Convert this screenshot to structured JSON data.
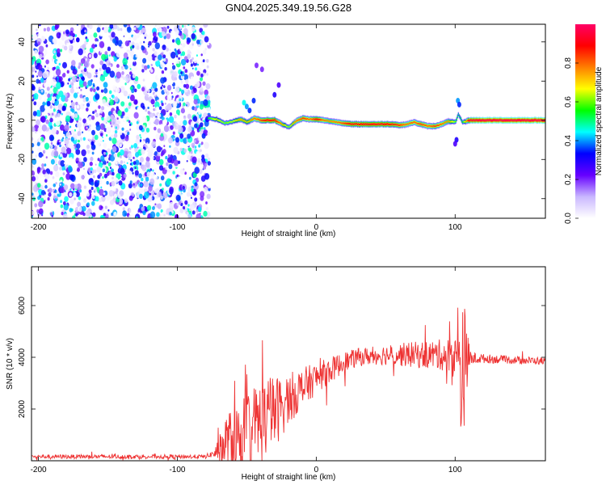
{
  "title": "GN04.2025.349.19.56.G28",
  "chart_data": [
    {
      "type": "heatmap",
      "title": "GN04.2025.349.19.56.G28",
      "xlabel": "Height of straight line (km)",
      "ylabel": "Frequency (Hz)",
      "xlim": [
        -205,
        165
      ],
      "ylim": [
        -50,
        49
      ],
      "xticks": [
        -200,
        -100,
        0,
        100
      ],
      "xtick_labels": [
        "-200",
        "-100",
        "0",
        "100"
      ],
      "yticks": [
        -40,
        -20,
        0,
        20,
        40
      ],
      "ytick_labels": [
        "-40",
        "-20",
        "0",
        "20",
        "40"
      ],
      "noise_region_x": [
        -205,
        -77
      ],
      "signal_start_x": -78,
      "signal_track": [
        [
          -78,
          1.0,
          0.55
        ],
        [
          -72,
          0.5,
          0.7
        ],
        [
          -66,
          -1.5,
          0.6
        ],
        [
          -60,
          -0.5,
          0.65
        ],
        [
          -55,
          0.5,
          0.75
        ],
        [
          -50,
          -1.0,
          0.7
        ],
        [
          -45,
          1.0,
          0.8
        ],
        [
          -40,
          0.0,
          0.85
        ],
        [
          -35,
          0.0,
          0.9
        ],
        [
          -30,
          0.0,
          0.9
        ],
        [
          -25,
          -2.0,
          0.75
        ],
        [
          -20,
          -3.5,
          0.6
        ],
        [
          -15,
          -0.5,
          0.8
        ],
        [
          -10,
          1.0,
          0.85
        ],
        [
          -5,
          0.5,
          0.8
        ],
        [
          0,
          0.5,
          0.9
        ],
        [
          5,
          0.0,
          0.8
        ],
        [
          10,
          -0.5,
          0.75
        ],
        [
          15,
          -1.0,
          0.8
        ],
        [
          20,
          -1.5,
          0.85
        ],
        [
          25,
          -2.0,
          0.9
        ],
        [
          30,
          -2.0,
          0.88
        ],
        [
          35,
          -2.0,
          0.92
        ],
        [
          40,
          -2.0,
          0.9
        ],
        [
          45,
          -2.0,
          0.92
        ],
        [
          50,
          -2.0,
          0.9
        ],
        [
          55,
          -2.0,
          0.88
        ],
        [
          60,
          -2.5,
          0.85
        ],
        [
          65,
          -2.0,
          0.8
        ],
        [
          70,
          -1.0,
          0.8
        ],
        [
          75,
          -2.0,
          0.85
        ],
        [
          80,
          -3.0,
          0.8
        ],
        [
          85,
          -3.0,
          0.85
        ],
        [
          90,
          -2.0,
          0.8
        ],
        [
          95,
          -0.5,
          0.75
        ],
        [
          100,
          -1.0,
          0.6
        ],
        [
          102,
          3.0,
          0.5
        ],
        [
          105,
          -1.0,
          0.55
        ],
        [
          110,
          0.0,
          0.95
        ],
        [
          120,
          0.0,
          0.98
        ],
        [
          130,
          0.0,
          0.98
        ],
        [
          140,
          0.0,
          0.98
        ],
        [
          150,
          0.0,
          0.98
        ],
        [
          160,
          0.0,
          0.98
        ],
        [
          165,
          0.0,
          0.98
        ]
      ],
      "scattered_features": [
        [
          -50,
          7,
          0.4
        ],
        [
          -52,
          9,
          0.45
        ],
        [
          -48,
          5,
          0.35
        ],
        [
          -45,
          10,
          0.35
        ],
        [
          -30,
          13,
          0.3
        ],
        [
          -27,
          18,
          0.25
        ],
        [
          -43,
          28,
          0.2
        ],
        [
          -39,
          26,
          0.2
        ],
        [
          -100,
          -10,
          0.35
        ],
        [
          -97,
          -8,
          0.3
        ],
        [
          -81,
          -8,
          0.35
        ],
        [
          102,
          10,
          0.4
        ],
        [
          103,
          8,
          0.35
        ],
        [
          101,
          -10,
          0.3
        ],
        [
          100,
          -12,
          0.25
        ]
      ],
      "colorbar": {
        "label": "Normalized spectral amplitude",
        "range": [
          0.0,
          1.0
        ],
        "ticks": [
          0.0,
          0.2,
          0.4,
          0.6,
          0.8
        ],
        "tick_labels": [
          "0.0",
          "0.2",
          "0.4",
          "0.6",
          "0.8"
        ],
        "colors": [
          "#ffffff",
          "#c9b7ff",
          "#6600ff",
          "#0000ff",
          "#00ffff",
          "#00ff00",
          "#ffff00",
          "#ff7f00",
          "#ff0000",
          "#ff0066"
        ]
      }
    },
    {
      "type": "line",
      "xlabel": "Height of straight line (km)",
      "ylabel": "SNR (10 * v/v)",
      "xlim": [
        -205,
        165
      ],
      "ylim": [
        0,
        7500
      ],
      "xticks": [
        -200,
        -100,
        0,
        100
      ],
      "xtick_labels": [
        "-200",
        "-100",
        "0",
        "100"
      ],
      "yticks": [
        2000,
        4000,
        6000
      ],
      "ytick_labels": [
        "2000",
        "4000",
        "6000"
      ],
      "color": "#ee3333",
      "profile": [
        [
          -205,
          160,
          80
        ],
        [
          -80,
          160,
          80
        ],
        [
          -75,
          250,
          120
        ],
        [
          -70,
          400,
          500
        ],
        [
          -65,
          700,
          1100
        ],
        [
          -60,
          850,
          1200
        ],
        [
          -55,
          950,
          1300
        ],
        [
          -50,
          1200,
          1500
        ],
        [
          -45,
          1350,
          1600
        ],
        [
          -40,
          1500,
          1700
        ],
        [
          -35,
          1700,
          1500
        ],
        [
          -30,
          1900,
          1400
        ],
        [
          -25,
          2100,
          1200
        ],
        [
          -20,
          2400,
          1000
        ],
        [
          -15,
          2600,
          900
        ],
        [
          -10,
          2800,
          800
        ],
        [
          -5,
          3000,
          700
        ],
        [
          0,
          3200,
          600
        ],
        [
          10,
          3500,
          500
        ],
        [
          20,
          3800,
          400
        ],
        [
          30,
          4000,
          350
        ],
        [
          40,
          4050,
          350
        ],
        [
          50,
          4100,
          400
        ],
        [
          60,
          4100,
          450
        ],
        [
          70,
          4100,
          500
        ],
        [
          80,
          4100,
          550
        ],
        [
          90,
          4100,
          600
        ],
        [
          95,
          4050,
          700
        ],
        [
          100,
          4000,
          1500
        ],
        [
          102,
          3500,
          3000
        ],
        [
          104,
          3800,
          3500
        ],
        [
          106,
          3800,
          3000
        ],
        [
          108,
          3900,
          1200
        ],
        [
          112,
          3950,
          250
        ],
        [
          120,
          3950,
          180
        ],
        [
          140,
          3900,
          150
        ],
        [
          165,
          3850,
          150
        ]
      ]
    }
  ]
}
